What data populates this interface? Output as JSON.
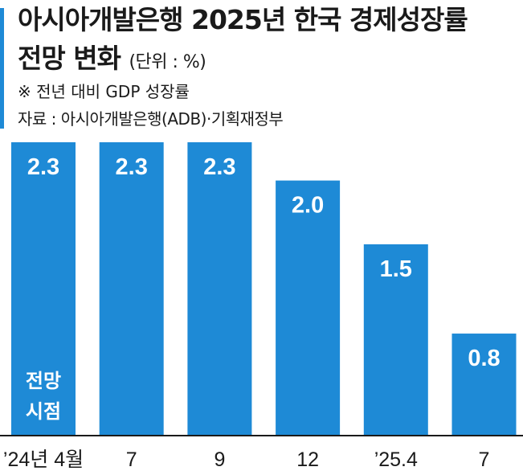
{
  "title_line1": "아시아개발은행 2025년 한국 경제성장률",
  "title_line2": "전망 변화",
  "unit": "(단위 : %)",
  "note": "※ 전년 대비 GDP 성장률",
  "source": "자료 : 아시아개발은행(ADB)·기획재정부",
  "inside_label": [
    "전망",
    "시점"
  ],
  "colors": {
    "bar": "#1e8ad6",
    "accent": "#1e8ad6",
    "baseline": "#1a1a1a"
  },
  "chart_data": {
    "type": "bar",
    "categories": [
      "’24년 4월",
      "7",
      "9",
      "12",
      "’25.4",
      "7"
    ],
    "values": [
      2.3,
      2.3,
      2.3,
      2.0,
      1.5,
      0.8
    ],
    "data_labels": [
      "2.3",
      "2.3",
      "2.3",
      "2.0",
      "1.5",
      "0.8"
    ],
    "title": "아시아개발은행 2025년 한국 경제성장률 전망 변화",
    "xlabel": "전망 시점",
    "ylabel": "",
    "ylim": [
      0,
      2.3
    ],
    "grid": false
  }
}
